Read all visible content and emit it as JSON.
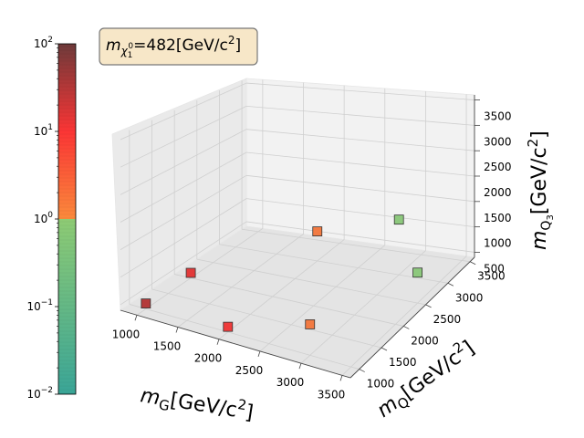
{
  "chart_data": {
    "type": "scatter",
    "annotation": {
      "symbol": "m",
      "sub": "χ",
      "subsub": "1",
      "supsub": "0",
      "text": "=482[GeV/c",
      "sup": "2",
      "close": "]"
    },
    "axes": {
      "x": {
        "label_sym": "m",
        "label_sub": "G",
        "label_text": "[GeV/c",
        "label_sup": "2",
        "label_close": "]",
        "lim": [
          800,
          3600
        ],
        "ticks": [
          "1000",
          "1500",
          "2000",
          "2500",
          "3000",
          "3500"
        ]
      },
      "y": {
        "label_sym": "m",
        "label_sub": "Q",
        "label_text": "[GeV/c",
        "label_sup": "2",
        "label_close": "]",
        "lim": [
          800,
          3600
        ],
        "ticks": [
          "1000",
          "1500",
          "2000",
          "2500",
          "3000",
          "3500"
        ]
      },
      "z": {
        "label_sym": "m",
        "label_sub": "Q",
        "label_subsub": "3",
        "label_text": "[GeV/c",
        "label_sup": "2",
        "label_close": "]",
        "lim": [
          400,
          3600
        ],
        "ticks": [
          "500",
          "1000",
          "1500",
          "2000",
          "2500",
          "3000",
          "3500"
        ]
      }
    },
    "colorbar": {
      "scale": "log",
      "range": [
        0.01,
        100
      ],
      "tick_base": "10",
      "tick_exps": [
        "−2",
        "−1",
        "0",
        "1",
        "2"
      ],
      "colors": {
        "low": "#3aa597",
        "mid_low": "#8ecb74",
        "mid_high": "#fb8a3c",
        "red": "#fb3535",
        "high": "#6e3a3a"
      }
    },
    "points": [
      {
        "x": 1000,
        "y": 1000,
        "z": 500,
        "color": "#b43a3a"
      },
      {
        "x": 1000,
        "y": 2000,
        "z": 500,
        "color": "#e23a3a"
      },
      {
        "x": 2000,
        "y": 1000,
        "z": 500,
        "color": "#ef3c3c"
      },
      {
        "x": 2000,
        "y": 3000,
        "z": 1000,
        "color": "#f27b43"
      },
      {
        "x": 3000,
        "y": 1000,
        "z": 1000,
        "color": "#f27b43"
      },
      {
        "x": 3000,
        "y": 3000,
        "z": 1500,
        "color": "#8dc87d"
      },
      {
        "x": 3500,
        "y": 2500,
        "z": 1000,
        "color": "#8dc87d"
      }
    ]
  }
}
